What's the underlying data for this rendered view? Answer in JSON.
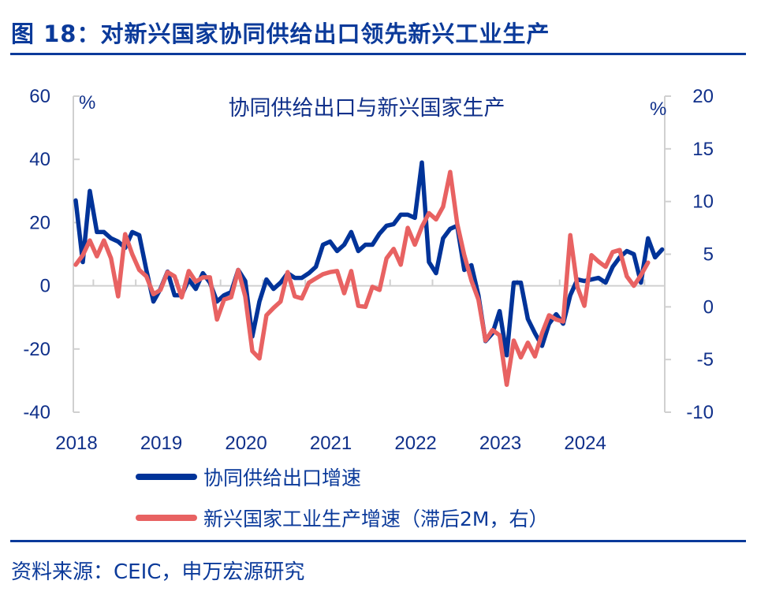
{
  "figure_title": "图 18：对新兴国家协同供给出口领先新兴工业生产",
  "source": "资料来源：CEIC，申万宏源研究",
  "colors": {
    "accent": "#0b3a9a",
    "blue_series": "#003399",
    "red_series": "#e86262",
    "axis": "#d0d0d0"
  },
  "chart_data": {
    "type": "line",
    "title": "协同供给出口与新兴国家生产",
    "x_start": "2018-01",
    "x_frequency": "monthly",
    "x_tick_labels": [
      "2018",
      "2019",
      "2020",
      "2021",
      "2022",
      "2023",
      "2024"
    ],
    "y_left": {
      "unit": "%",
      "range": [
        -40,
        60
      ],
      "ticks": [
        "-40",
        "-20",
        "0",
        "20",
        "40",
        "60"
      ]
    },
    "y_right": {
      "unit": "%",
      "range": [
        -10,
        20
      ],
      "ticks": [
        "-10",
        "-5",
        "0",
        "5",
        "10",
        "15",
        "20"
      ]
    },
    "grid": false,
    "legend_position": "bottom",
    "series": [
      {
        "name": "协同供给出口增速",
        "axis": "left",
        "color": "#003399",
        "values": [
          27,
          7.5,
          30,
          17,
          17,
          15,
          14,
          12,
          17,
          16,
          5,
          -5,
          -1,
          4.5,
          -3,
          -3,
          2,
          -1,
          4,
          1,
          -5,
          -3,
          -2,
          5,
          1.5,
          -16,
          -5,
          2,
          -1,
          1,
          4,
          2.5,
          2.5,
          4,
          6,
          13,
          14,
          11,
          13,
          17,
          11,
          13,
          13,
          16.5,
          19,
          19.5,
          22.5,
          22.5,
          21.5,
          39,
          7.5,
          4,
          15,
          18,
          19,
          5,
          6.5,
          -3,
          -17.5,
          -15,
          -8,
          -22,
          1,
          1,
          -10.5,
          -15,
          -19,
          -12,
          -9,
          -12,
          -3,
          2,
          1.5,
          2,
          2.5,
          1,
          6,
          9,
          11,
          10,
          1,
          15,
          9,
          11.5
        ]
      },
      {
        "name": "新兴国家工业生产增速（滞后2M，右）",
        "axis": "right",
        "color": "#e86262",
        "values": [
          4,
          4.9,
          6.3,
          4.8,
          6.3,
          4.6,
          1,
          6.9,
          5,
          3.5,
          2.9,
          1.2,
          1.6,
          3.3,
          2.9,
          0.9,
          3.4,
          2.4,
          2.8,
          2.8,
          -1.2,
          0.7,
          0.9,
          3.5,
          1,
          -4.2,
          -4.9,
          -0.8,
          -0.1,
          0.5,
          3.3,
          1,
          0.8,
          2.3,
          2.7,
          3.1,
          3.3,
          3.4,
          1.3,
          3.4,
          0.1,
          0,
          1.9,
          1.6,
          4.6,
          5.5,
          4,
          7.5,
          5.9,
          7.6,
          8.9,
          8.3,
          9.5,
          12.8,
          7.9,
          4.9,
          2.5,
          0.7,
          -3.2,
          -2.2,
          -2.7,
          -7.4,
          -3.2,
          -4.8,
          -3.4,
          -4.7,
          -2.5,
          -0.8,
          -1.2,
          -1.4,
          6.8,
          1.9,
          0.1,
          4.9,
          4.3,
          3.8,
          5.2,
          5.4,
          2.9,
          2,
          3,
          4.2
        ]
      }
    ]
  }
}
